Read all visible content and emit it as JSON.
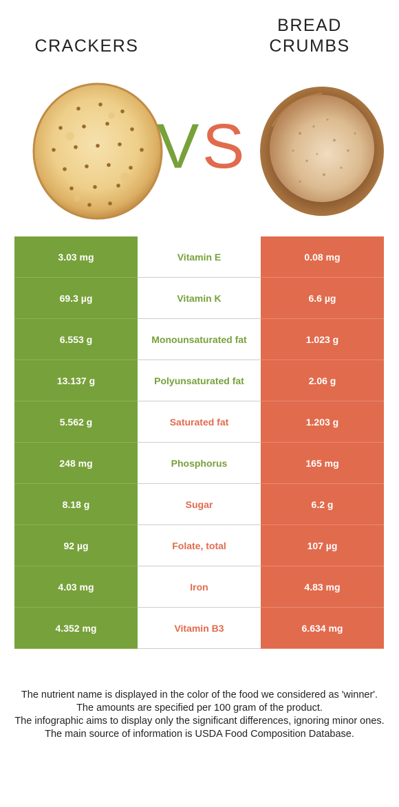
{
  "foods": {
    "left": {
      "name": "CRACKERS",
      "color": "#77a13a",
      "image": "crackers-image"
    },
    "right": {
      "name_line1": "BREAD",
      "name_line2": "CRUMBS",
      "color": "#e16b4d",
      "image": "bread-crumbs-image"
    },
    "vs_v": "V",
    "vs_s": "S"
  },
  "rows": [
    {
      "left": "3.03 mg",
      "nutrient": "Vitamin E",
      "right": "0.08 mg",
      "winner": "left"
    },
    {
      "left": "69.3 µg",
      "nutrient": "Vitamin K",
      "right": "6.6 µg",
      "winner": "left"
    },
    {
      "left": "6.553 g",
      "nutrient": "Monounsaturated fat",
      "right": "1.023 g",
      "winner": "left"
    },
    {
      "left": "13.137 g",
      "nutrient": "Polyunsaturated fat",
      "right": "2.06 g",
      "winner": "left"
    },
    {
      "left": "5.562 g",
      "nutrient": "Saturated fat",
      "right": "1.203 g",
      "winner": "right"
    },
    {
      "left": "248 mg",
      "nutrient": "Phosphorus",
      "right": "165 mg",
      "winner": "left"
    },
    {
      "left": "8.18 g",
      "nutrient": "Sugar",
      "right": "6.2 g",
      "winner": "right"
    },
    {
      "left": "92 µg",
      "nutrient": "Folate, total",
      "right": "107 µg",
      "winner": "right"
    },
    {
      "left": "4.03 mg",
      "nutrient": "Iron",
      "right": "4.83 mg",
      "winner": "right"
    },
    {
      "left": "4.352 mg",
      "nutrient": "Vitamin B3",
      "right": "6.634 mg",
      "winner": "right"
    }
  ],
  "footer": {
    "line1": "The nutrient name is displayed in the color of the food we considered as 'winner'.",
    "line2": "The amounts are specified per 100 gram of the product.",
    "line3": "The infographic aims to display only the significant differences, ignoring minor ones.",
    "line4": "The main source of information is USDA Food Composition Database."
  }
}
